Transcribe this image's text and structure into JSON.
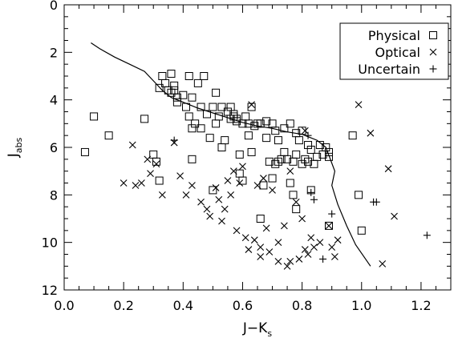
{
  "chart_data": {
    "type": "scatter",
    "title": "",
    "xlabel": "J−K",
    "xlabel_sub": "s",
    "ylabel": "J",
    "ylabel_sub": "abs",
    "xlim": [
      0.0,
      1.3
    ],
    "ylim": [
      12,
      0
    ],
    "y_inverted": true,
    "grid": false,
    "legend_position": "top-right",
    "x_ticks": [
      "0.0",
      "0.2",
      "0.4",
      "0.6",
      "0.8",
      "1.0",
      "1.2"
    ],
    "x_tick_values": [
      0.0,
      0.2,
      0.4,
      0.6,
      0.8,
      1.0,
      1.2
    ],
    "y_ticks": [
      "0",
      "2",
      "4",
      "6",
      "8",
      "10",
      "12"
    ],
    "y_tick_values": [
      0,
      2,
      4,
      6,
      8,
      10,
      12
    ],
    "series": [
      {
        "name": "Physical",
        "marker": "square",
        "points": [
          [
            0.07,
            6.2
          ],
          [
            0.1,
            4.7
          ],
          [
            0.15,
            5.5
          ],
          [
            0.27,
            4.8
          ],
          [
            0.3,
            6.3
          ],
          [
            0.31,
            6.6
          ],
          [
            0.32,
            7.4
          ],
          [
            0.32,
            3.5
          ],
          [
            0.33,
            3.0
          ],
          [
            0.34,
            3.3
          ],
          [
            0.35,
            3.6
          ],
          [
            0.36,
            2.9
          ],
          [
            0.36,
            3.7
          ],
          [
            0.37,
            3.4
          ],
          [
            0.37,
            3.6
          ],
          [
            0.38,
            4.1
          ],
          [
            0.38,
            3.9
          ],
          [
            0.4,
            3.8
          ],
          [
            0.41,
            4.3
          ],
          [
            0.42,
            3.0
          ],
          [
            0.42,
            4.7
          ],
          [
            0.43,
            5.2
          ],
          [
            0.43,
            6.5
          ],
          [
            0.43,
            3.9
          ],
          [
            0.44,
            5.0
          ],
          [
            0.45,
            3.3
          ],
          [
            0.46,
            4.3
          ],
          [
            0.46,
            5.2
          ],
          [
            0.47,
            3.0
          ],
          [
            0.48,
            4.6
          ],
          [
            0.49,
            5.6
          ],
          [
            0.5,
            4.3
          ],
          [
            0.5,
            7.8
          ],
          [
            0.51,
            5.0
          ],
          [
            0.51,
            3.7
          ],
          [
            0.52,
            4.7
          ],
          [
            0.53,
            4.3
          ],
          [
            0.53,
            6.0
          ],
          [
            0.54,
            5.7
          ],
          [
            0.55,
            4.5
          ],
          [
            0.56,
            4.3
          ],
          [
            0.56,
            4.8
          ],
          [
            0.57,
            4.6
          ],
          [
            0.57,
            4.7
          ],
          [
            0.58,
            4.8
          ],
          [
            0.58,
            4.9
          ],
          [
            0.59,
            7.1
          ],
          [
            0.59,
            6.3
          ],
          [
            0.6,
            7.4
          ],
          [
            0.6,
            5.0
          ],
          [
            0.61,
            4.7
          ],
          [
            0.62,
            5.0
          ],
          [
            0.62,
            5.5
          ],
          [
            0.63,
            4.3
          ],
          [
            0.63,
            6.2
          ],
          [
            0.64,
            5.1
          ],
          [
            0.65,
            5.0
          ],
          [
            0.66,
            5.0
          ],
          [
            0.66,
            9.0
          ],
          [
            0.67,
            7.6
          ],
          [
            0.68,
            4.9
          ],
          [
            0.68,
            5.6
          ],
          [
            0.69,
            6.6
          ],
          [
            0.7,
            7.3
          ],
          [
            0.7,
            5.0
          ],
          [
            0.71,
            5.3
          ],
          [
            0.71,
            6.7
          ],
          [
            0.72,
            6.6
          ],
          [
            0.72,
            5.7
          ],
          [
            0.73,
            6.5
          ],
          [
            0.74,
            5.2
          ],
          [
            0.74,
            6.2
          ],
          [
            0.75,
            6.5
          ],
          [
            0.76,
            5.0
          ],
          [
            0.76,
            7.5
          ],
          [
            0.77,
            6.6
          ],
          [
            0.77,
            8.0
          ],
          [
            0.78,
            5.4
          ],
          [
            0.78,
            6.3
          ],
          [
            0.78,
            8.6
          ],
          [
            0.79,
            5.7
          ],
          [
            0.8,
            6.7
          ],
          [
            0.8,
            5.3
          ],
          [
            0.81,
            6.5
          ],
          [
            0.82,
            5.9
          ],
          [
            0.82,
            6.6
          ],
          [
            0.83,
            6.1
          ],
          [
            0.83,
            7.8
          ],
          [
            0.84,
            6.7
          ],
          [
            0.85,
            6.4
          ],
          [
            0.86,
            5.9
          ],
          [
            0.87,
            6.3
          ],
          [
            0.88,
            6.0
          ],
          [
            0.89,
            6.2
          ],
          [
            0.89,
            6.4
          ],
          [
            0.89,
            9.3
          ],
          [
            0.97,
            5.5
          ],
          [
            0.99,
            8.0
          ],
          [
            1.0,
            9.5
          ]
        ]
      },
      {
        "name": "Optical",
        "marker": "x",
        "points": [
          [
            0.2,
            7.5
          ],
          [
            0.23,
            5.9
          ],
          [
            0.24,
            7.6
          ],
          [
            0.26,
            7.5
          ],
          [
            0.28,
            6.5
          ],
          [
            0.29,
            7.1
          ],
          [
            0.31,
            6.7
          ],
          [
            0.33,
            8.0
          ],
          [
            0.37,
            5.8
          ],
          [
            0.39,
            7.2
          ],
          [
            0.41,
            8.0
          ],
          [
            0.43,
            7.6
          ],
          [
            0.46,
            8.3
          ],
          [
            0.48,
            8.6
          ],
          [
            0.49,
            8.9
          ],
          [
            0.51,
            7.7
          ],
          [
            0.52,
            8.2
          ],
          [
            0.53,
            9.1
          ],
          [
            0.54,
            8.6
          ],
          [
            0.55,
            7.4
          ],
          [
            0.56,
            8.0
          ],
          [
            0.57,
            7.0
          ],
          [
            0.58,
            9.5
          ],
          [
            0.59,
            7.5
          ],
          [
            0.6,
            6.8
          ],
          [
            0.61,
            9.8
          ],
          [
            0.62,
            10.3
          ],
          [
            0.63,
            4.2
          ],
          [
            0.64,
            9.9
          ],
          [
            0.65,
            7.6
          ],
          [
            0.66,
            10.2
          ],
          [
            0.66,
            10.6
          ],
          [
            0.67,
            7.3
          ],
          [
            0.68,
            9.4
          ],
          [
            0.69,
            10.4
          ],
          [
            0.7,
            7.8
          ],
          [
            0.72,
            10.0
          ],
          [
            0.72,
            10.8
          ],
          [
            0.74,
            9.3
          ],
          [
            0.75,
            11.0
          ],
          [
            0.76,
            10.8
          ],
          [
            0.76,
            7.0
          ],
          [
            0.78,
            8.3
          ],
          [
            0.79,
            10.7
          ],
          [
            0.8,
            9.0
          ],
          [
            0.81,
            10.3
          ],
          [
            0.81,
            5.3
          ],
          [
            0.82,
            10.5
          ],
          [
            0.83,
            9.8
          ],
          [
            0.84,
            10.2
          ],
          [
            0.86,
            10.0
          ],
          [
            0.89,
            9.3
          ],
          [
            0.9,
            10.2
          ],
          [
            0.91,
            10.6
          ],
          [
            0.92,
            9.9
          ],
          [
            0.99,
            4.2
          ],
          [
            1.03,
            5.4
          ],
          [
            1.07,
            10.9
          ],
          [
            1.09,
            6.9
          ],
          [
            1.11,
            8.9
          ]
        ]
      },
      {
        "name": "Uncertain",
        "marker": "plus",
        "points": [
          [
            0.37,
            5.7
          ],
          [
            0.82,
            5.5
          ],
          [
            0.83,
            7.9
          ],
          [
            0.84,
            8.2
          ],
          [
            0.87,
            10.7
          ],
          [
            0.9,
            8.8
          ],
          [
            1.04,
            8.3
          ],
          [
            1.05,
            8.3
          ],
          [
            1.22,
            9.7
          ]
        ]
      }
    ],
    "curve": {
      "name": "",
      "points": [
        [
          0.09,
          1.6
        ],
        [
          0.12,
          1.85
        ],
        [
          0.17,
          2.2
        ],
        [
          0.22,
          2.5
        ],
        [
          0.27,
          2.8
        ],
        [
          0.3,
          3.2
        ],
        [
          0.33,
          3.6
        ],
        [
          0.36,
          3.9
        ],
        [
          0.4,
          4.1
        ],
        [
          0.45,
          4.35
        ],
        [
          0.5,
          4.55
        ],
        [
          0.55,
          4.75
        ],
        [
          0.6,
          4.95
        ],
        [
          0.65,
          5.1
        ],
        [
          0.7,
          5.2
        ],
        [
          0.75,
          5.35
        ],
        [
          0.8,
          5.45
        ],
        [
          0.85,
          5.7
        ],
        [
          0.88,
          6.0
        ],
        [
          0.91,
          7.0
        ],
        [
          0.9,
          7.6
        ],
        [
          0.92,
          8.4
        ],
        [
          0.95,
          9.3
        ],
        [
          0.98,
          10.1
        ],
        [
          1.03,
          11.0
        ]
      ]
    }
  }
}
